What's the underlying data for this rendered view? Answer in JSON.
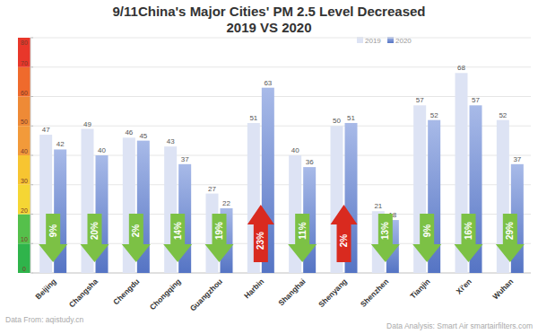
{
  "chart_data": {
    "type": "bar",
    "title": "9/11China's Major Cities' PM 2.5 Level Decreased",
    "subtitle": "2019 VS 2020",
    "categories": [
      "Beijing",
      "Changsha",
      "Chengdu",
      "Chongqing",
      "Guangzhou",
      "Harbin",
      "Shanghai",
      "Shenyang",
      "Shenzhen",
      "Tianjin",
      "Xi'en",
      "Wuhan"
    ],
    "series": [
      {
        "name": "2019",
        "color": "#dde3f4",
        "values": [
          47,
          49,
          46,
          43,
          27,
          51,
          40,
          50,
          21,
          57,
          68,
          52
        ]
      },
      {
        "name": "2020",
        "color": "#5574c4",
        "values": [
          42,
          40,
          45,
          37,
          22,
          63,
          36,
          51,
          18,
          52,
          57,
          37
        ]
      }
    ],
    "annotations": [
      "9%",
      "20%",
      "2%",
      "14%",
      "19%",
      "23%",
      "11%",
      "2%",
      "13%",
      "9%",
      "16%",
      "29%"
    ],
    "ylim": [
      0,
      80
    ],
    "yticks": [
      0,
      10,
      20,
      30,
      40,
      50,
      60,
      70,
      80
    ],
    "grid": true,
    "legend": "top",
    "data_labels": true,
    "source": "Data From: aqistudy.cn",
    "credit": "Data Analysis:  Smart Air smartairfilters.com"
  }
}
